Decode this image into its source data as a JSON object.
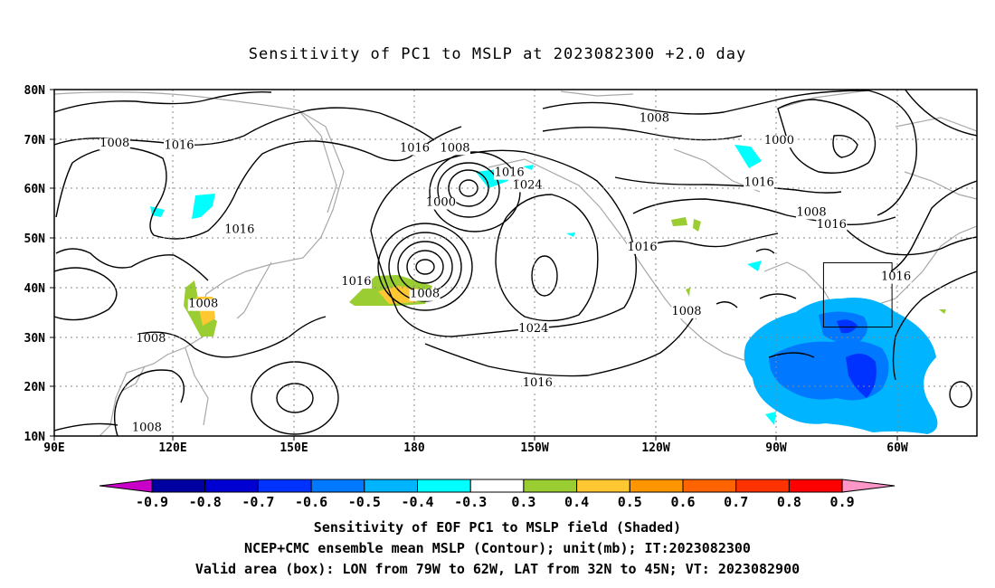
{
  "title": "Sensitivity of PC1 to MSLP at 2023082300 +2.0 day",
  "map": {
    "lon_range": [
      "90E",
      "50W"
    ],
    "lat_range": [
      "10N",
      "80N"
    ],
    "lat_ticks": [
      "80N",
      "70N",
      "60N",
      "50N",
      "40N",
      "30N",
      "20N",
      "10N"
    ],
    "lon_ticks": [
      "90E",
      "120E",
      "150E",
      "180",
      "150W",
      "120W",
      "90W",
      "60W"
    ],
    "grid": true,
    "contour_labels": [
      {
        "text": "1008",
        "lon": 105,
        "lat": 68.5
      },
      {
        "text": "1016",
        "lon": 121,
        "lat": 68
      },
      {
        "text": "1016",
        "lon": 136,
        "lat": 51
      },
      {
        "text": "1008",
        "lon": 127,
        "lat": 36
      },
      {
        "text": "1008",
        "lon": 114,
        "lat": 29
      },
      {
        "text": "1008",
        "lon": 113,
        "lat": 11
      },
      {
        "text": "1016",
        "lon": 165,
        "lat": 40.5
      },
      {
        "text": "1008",
        "lon": -178,
        "lat": 38
      },
      {
        "text": "1016",
        "lon": -180.5,
        "lat": 67.5
      },
      {
        "text": "1008",
        "lon": -170.5,
        "lat": 67.5
      },
      {
        "text": "1000",
        "lon": -174,
        "lat": 56.5
      },
      {
        "text": "1016",
        "lon": -157,
        "lat": 62.5
      },
      {
        "text": "1024",
        "lon": -152.5,
        "lat": 60
      },
      {
        "text": "1024",
        "lon": -151,
        "lat": 31
      },
      {
        "text": "1016",
        "lon": -150,
        "lat": 20
      },
      {
        "text": "1008",
        "lon": -121,
        "lat": 73.5
      },
      {
        "text": "1016",
        "lon": -124,
        "lat": 47.5
      },
      {
        "text": "1008",
        "lon": -113,
        "lat": 34.5
      },
      {
        "text": "1000",
        "lon": -90,
        "lat": 69
      },
      {
        "text": "1016",
        "lon": -95,
        "lat": 60.5
      },
      {
        "text": "1008",
        "lon": -82,
        "lat": 54.5
      },
      {
        "text": "1016",
        "lon": -77,
        "lat": 52
      },
      {
        "text": "1016",
        "lon": -61,
        "lat": 41.5
      }
    ],
    "valid_box": {
      "lon_min": -79,
      "lon_max": -62,
      "lat_min": 32,
      "lat_max": 45
    }
  },
  "colorbar": {
    "labels": [
      "-0.9",
      "-0.8",
      "-0.7",
      "-0.6",
      "-0.5",
      "-0.4",
      "-0.3",
      "0.3",
      "0.4",
      "0.5",
      "0.6",
      "0.7",
      "0.8",
      "0.9"
    ],
    "colors": [
      "#c800c8",
      "#0000a0",
      "#0000d2",
      "#0032ff",
      "#0078ff",
      "#00b4ff",
      "#00ffff",
      "#ffffff",
      "#9acd32",
      "#ffc832",
      "#ff9600",
      "#ff6400",
      "#ff3200",
      "#ff0000",
      "#ff96c8"
    ]
  },
  "captions": [
    "Sensitivity of EOF PC1 to MSLP field (Shaded)",
    "NCEP+CMC ensemble mean MSLP (Contour); unit(mb); IT:2023082300",
    "Valid area (box): LON from 79W to 62W, LAT from 32N to 45N; VT: 2023082900"
  ]
}
